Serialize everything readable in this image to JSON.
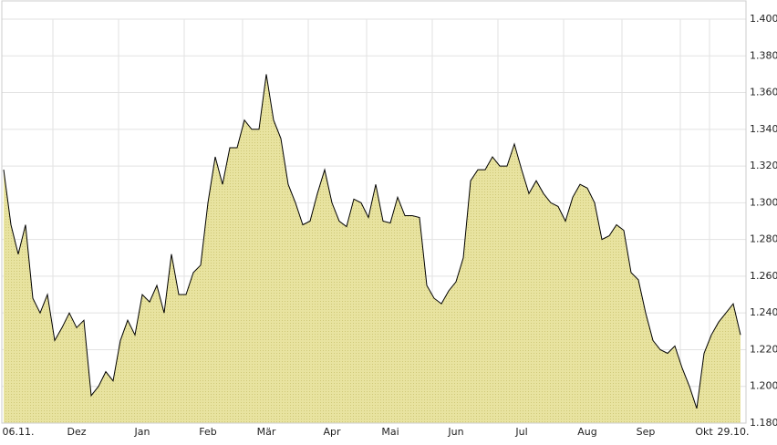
{
  "chart_data": {
    "type": "area",
    "categories": [
      null,
      null,
      "06.11.",
      null,
      null,
      null,
      null,
      null,
      null,
      null,
      "Dez",
      null,
      null,
      null,
      null,
      null,
      null,
      null,
      null,
      "Jan",
      null,
      null,
      null,
      null,
      null,
      null,
      null,
      null,
      "Feb",
      null,
      null,
      null,
      null,
      null,
      null,
      null,
      "Mär",
      null,
      null,
      null,
      null,
      null,
      null,
      null,
      null,
      "Apr",
      null,
      null,
      null,
      null,
      null,
      null,
      null,
      "Mai",
      null,
      null,
      null,
      null,
      null,
      null,
      null,
      null,
      "Jun",
      null,
      null,
      null,
      null,
      null,
      null,
      null,
      null,
      "Jul",
      null,
      null,
      null,
      null,
      null,
      null,
      null,
      null,
      "Aug",
      null,
      null,
      null,
      null,
      null,
      null,
      null,
      "Sep",
      null,
      null,
      null,
      null,
      null,
      null,
      null,
      "Okt",
      null,
      null,
      null,
      "29.10.",
      null
    ],
    "values": [
      1.318,
      1.288,
      1.272,
      1.288,
      1.248,
      1.24,
      1.25,
      1.225,
      1.232,
      1.24,
      1.232,
      1.236,
      1.195,
      1.2,
      1.208,
      1.203,
      1.225,
      1.236,
      1.228,
      1.25,
      1.246,
      1.255,
      1.24,
      1.272,
      1.25,
      1.25,
      1.262,
      1.266,
      1.3,
      1.325,
      1.31,
      1.33,
      1.33,
      1.345,
      1.34,
      1.34,
      1.37,
      1.345,
      1.335,
      1.31,
      1.3,
      1.288,
      1.29,
      1.305,
      1.318,
      1.3,
      1.29,
      1.287,
      1.302,
      1.3,
      1.292,
      1.31,
      1.29,
      1.289,
      1.303,
      1.293,
      1.293,
      1.292,
      1.255,
      1.248,
      1.245,
      1.252,
      1.257,
      1.27,
      1.312,
      1.318,
      1.318,
      1.325,
      1.32,
      1.32,
      1.332,
      1.318,
      1.305,
      1.312,
      1.305,
      1.3,
      1.298,
      1.29,
      1.303,
      1.31,
      1.308,
      1.3,
      1.28,
      1.282,
      1.288,
      1.285,
      1.262,
      1.258,
      1.24,
      1.225,
      1.22,
      1.218,
      1.222,
      1.21,
      1.2,
      1.188,
      1.218,
      1.228,
      1.235,
      1.24,
      1.245,
      1.228
    ],
    "color": "#e3dd8c",
    "line_color": "#000000",
    "ylim": [
      1.18,
      1.4
    ],
    "yticks": [
      {
        "value": 1.18,
        "label": "1.180"
      },
      {
        "value": 1.2,
        "label": "1.200"
      },
      {
        "value": 1.22,
        "label": "1.220"
      },
      {
        "value": 1.24,
        "label": "1.240"
      },
      {
        "value": 1.26,
        "label": "1.260"
      },
      {
        "value": 1.28,
        "label": "1.280"
      },
      {
        "value": 1.3,
        "label": "1.300"
      },
      {
        "value": 1.32,
        "label": "1.320"
      },
      {
        "value": 1.34,
        "label": "1.340"
      },
      {
        "value": 1.36,
        "label": "1.360"
      },
      {
        "value": 1.38,
        "label": "1.380"
      },
      {
        "value": 1.4,
        "label": "1.400"
      }
    ],
    "grid": true
  }
}
